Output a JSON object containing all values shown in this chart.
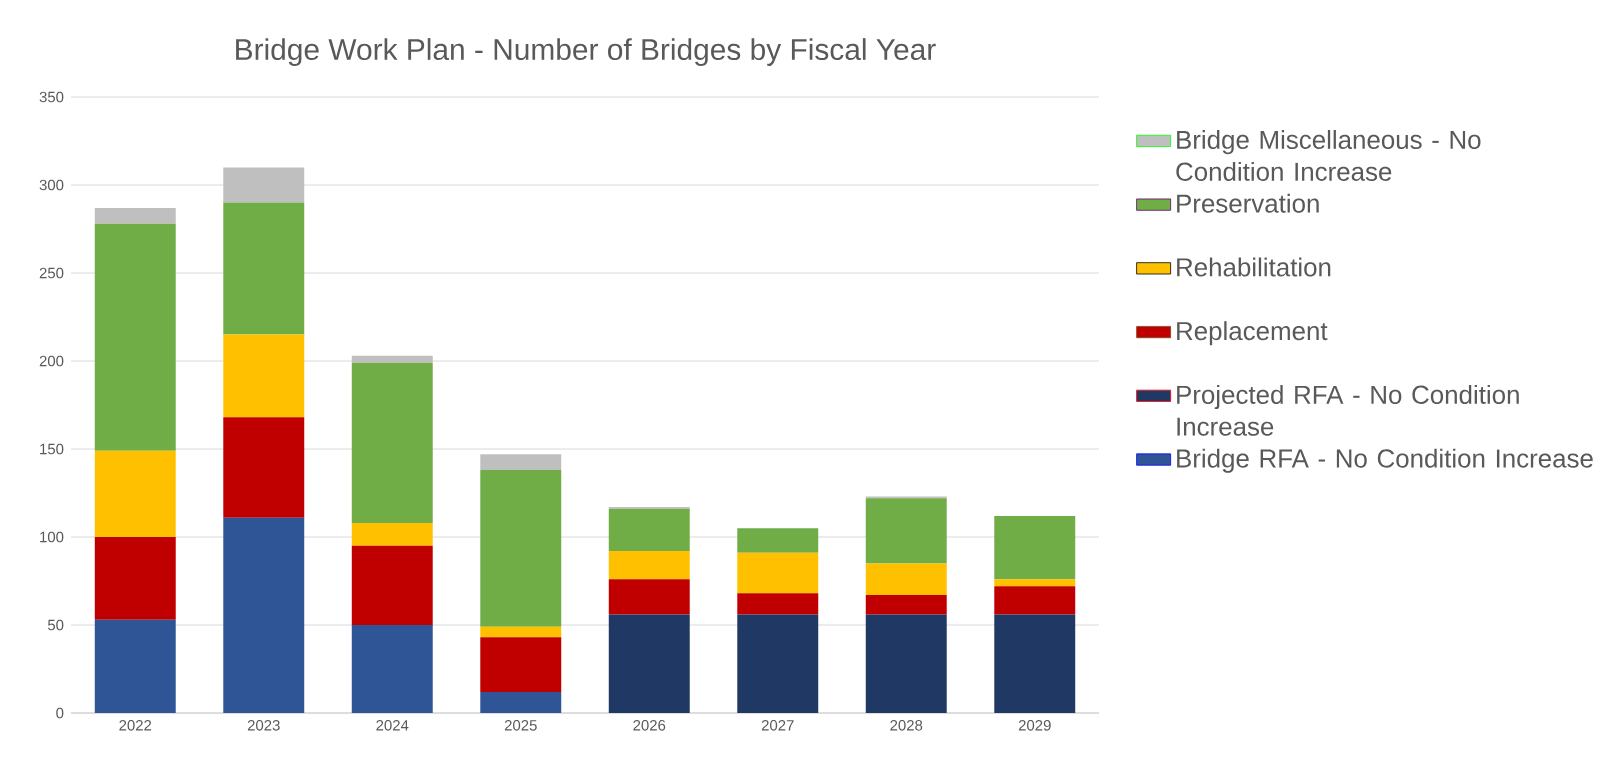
{
  "chart_data": {
    "type": "bar",
    "title": "Bridge Work Plan - Number of Bridges by Fiscal Year",
    "stacked": true,
    "categories": [
      "2022",
      "2023",
      "2024",
      "2025",
      "2026",
      "2027",
      "2028",
      "2029"
    ],
    "series": [
      {
        "name": "Bridge RFA - No Condition Increase",
        "color": "#2f5597",
        "values": [
          53,
          111,
          50,
          12,
          0,
          0,
          0,
          0
        ]
      },
      {
        "name": "Projected RFA - No Condition Increase",
        "color": "#1f3864",
        "values": [
          0,
          0,
          0,
          0,
          56,
          56,
          56,
          56
        ]
      },
      {
        "name": "Replacement",
        "color": "#c00000",
        "values": [
          47,
          57,
          45,
          31,
          20,
          12,
          11,
          16
        ]
      },
      {
        "name": "Rehabilitation",
        "color": "#ffc000",
        "values": [
          49,
          47,
          13,
          6,
          16,
          23,
          18,
          4
        ]
      },
      {
        "name": "Preservation",
        "color": "#70ad47",
        "values": [
          129,
          75,
          91,
          89,
          24,
          14,
          37,
          36
        ]
      },
      {
        "name": "Bridge Miscellaneous - No Condition Increase",
        "color": "#bfbfbf",
        "values": [
          9,
          20,
          4,
          9,
          1,
          0,
          1,
          0
        ]
      }
    ],
    "ylim": [
      0,
      350
    ],
    "yticks": [
      0,
      50,
      100,
      150,
      200,
      250,
      300,
      350
    ],
    "grid": "y",
    "legend": "right"
  }
}
